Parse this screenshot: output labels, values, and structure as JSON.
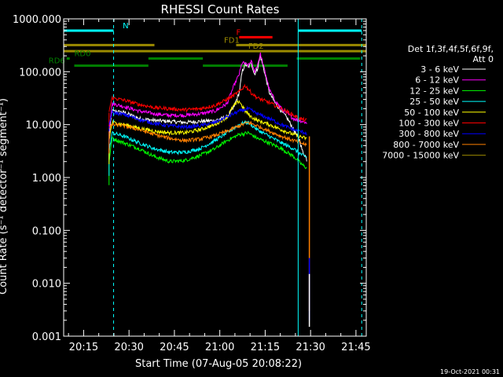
{
  "chart_data": {
    "type": "line",
    "title": "RHESSI Count Rates",
    "xlabel": "Start Time (07-Aug-05 20:08:22)",
    "ylabel": "Count Rate (s⁻¹ detector⁻¹ segment⁻¹)",
    "y_scale": "log",
    "ylim": [
      0.001,
      1000
    ],
    "xlim_minutes": [
      0,
      100
    ],
    "x_ticks": [
      {
        "label": "20:15",
        "min": 6.6
      },
      {
        "label": "20:30",
        "min": 21.6
      },
      {
        "label": "20:45",
        "min": 36.6
      },
      {
        "label": "21:00",
        "min": 51.6
      },
      {
        "label": "21:15",
        "min": 66.6
      },
      {
        "label": "21:30",
        "min": 81.6
      },
      {
        "label": "21:45",
        "min": 96.6
      }
    ],
    "y_ticks": [
      {
        "label": "0.001",
        "value": 0.001
      },
      {
        "label": "0.010",
        "value": 0.01
      },
      {
        "label": "0.100",
        "value": 0.1
      },
      {
        "label": "1.000",
        "value": 1
      },
      {
        "label": "10.000",
        "value": 10
      },
      {
        "label": "100.000",
        "value": 100
      },
      {
        "label": "1000.000",
        "value": 1000
      }
    ],
    "legend_header": [
      "Det 1f,3f,4f,5f,6f,9f,",
      "Att 0"
    ],
    "series": [
      {
        "name": "3 - 6 keV",
        "color": "#ffffff",
        "points": [
          [
            15,
            6
          ],
          [
            16,
            18
          ],
          [
            20,
            17
          ],
          [
            25,
            13
          ],
          [
            30,
            12
          ],
          [
            35,
            11.5
          ],
          [
            40,
            11
          ],
          [
            45,
            11.5
          ],
          [
            50,
            12
          ],
          [
            54,
            14
          ],
          [
            56,
            20
          ],
          [
            58,
            40
          ],
          [
            59,
            100
          ],
          [
            60,
            140
          ],
          [
            61,
            120
          ],
          [
            62,
            150
          ],
          [
            63,
            90
          ],
          [
            64,
            110
          ],
          [
            65,
            200
          ],
          [
            66,
            120
          ],
          [
            67,
            70
          ],
          [
            68,
            40
          ],
          [
            70,
            25
          ],
          [
            72,
            18
          ],
          [
            74,
            13
          ],
          [
            76,
            8
          ],
          [
            78,
            5
          ],
          [
            79,
            3
          ],
          [
            80,
            2.5
          ],
          [
            80.5,
            2
          ]
        ]
      },
      {
        "name": "6 - 12 keV",
        "color": "#ff00ff",
        "points": [
          [
            15,
            8
          ],
          [
            16,
            25
          ],
          [
            20,
            22
          ],
          [
            25,
            18
          ],
          [
            30,
            16
          ],
          [
            35,
            15
          ],
          [
            40,
            15
          ],
          [
            45,
            16
          ],
          [
            50,
            18
          ],
          [
            54,
            25
          ],
          [
            56,
            50
          ],
          [
            58,
            90
          ],
          [
            59,
            150
          ],
          [
            60,
            140
          ],
          [
            61,
            130
          ],
          [
            62,
            160
          ],
          [
            63,
            100
          ],
          [
            64,
            130
          ],
          [
            65,
            220
          ],
          [
            66,
            130
          ],
          [
            67,
            80
          ],
          [
            68,
            45
          ],
          [
            70,
            28
          ],
          [
            72,
            20
          ],
          [
            74,
            16
          ],
          [
            76,
            13
          ],
          [
            78,
            12
          ],
          [
            80,
            11
          ],
          [
            80.5,
            10
          ]
        ]
      },
      {
        "name": "12 - 25 keV",
        "color": "#00ff00",
        "points": [
          [
            15,
            2
          ],
          [
            16,
            5.5
          ],
          [
            20,
            4.5
          ],
          [
            25,
            3.5
          ],
          [
            30,
            2.5
          ],
          [
            35,
            2
          ],
          [
            40,
            2.1
          ],
          [
            45,
            2.6
          ],
          [
            50,
            3.5
          ],
          [
            54,
            5
          ],
          [
            58,
            6.5
          ],
          [
            61,
            7
          ],
          [
            64,
            5.5
          ],
          [
            68,
            4.5
          ],
          [
            72,
            3.5
          ],
          [
            76,
            2.5
          ],
          [
            79,
            1.7
          ],
          [
            80.5,
            1.5
          ]
        ]
      },
      {
        "name": "25 - 50 keV",
        "color": "#00ffff",
        "points": [
          [
            15,
            3
          ],
          [
            16,
            7
          ],
          [
            20,
            6
          ],
          [
            25,
            4.5
          ],
          [
            30,
            3.5
          ],
          [
            35,
            3
          ],
          [
            40,
            3
          ],
          [
            45,
            3.5
          ],
          [
            50,
            5
          ],
          [
            54,
            7
          ],
          [
            58,
            10
          ],
          [
            60,
            11
          ],
          [
            61,
            11
          ],
          [
            64,
            8
          ],
          [
            68,
            6
          ],
          [
            72,
            4.5
          ],
          [
            76,
            3.5
          ],
          [
            79,
            2.6
          ],
          [
            80.5,
            2.4
          ]
        ]
      },
      {
        "name": "50 - 100 keV",
        "color": "#ffff00",
        "points": [
          [
            15,
            5
          ],
          [
            16,
            11
          ],
          [
            20,
            10
          ],
          [
            25,
            8.5
          ],
          [
            30,
            7.5
          ],
          [
            35,
            7
          ],
          [
            40,
            7
          ],
          [
            45,
            8
          ],
          [
            50,
            10
          ],
          [
            54,
            14
          ],
          [
            56,
            22
          ],
          [
            58,
            28
          ],
          [
            60,
            18
          ],
          [
            62,
            14
          ],
          [
            64,
            12
          ],
          [
            68,
            10
          ],
          [
            72,
            8
          ],
          [
            76,
            6.5
          ],
          [
            80,
            5.5
          ],
          [
            80.5,
            5.3
          ]
        ]
      },
      {
        "name": "100 - 300 keV",
        "color": "#ff0000",
        "points": [
          [
            15,
            18
          ],
          [
            16,
            32
          ],
          [
            20,
            29
          ],
          [
            25,
            24
          ],
          [
            30,
            21
          ],
          [
            35,
            20
          ],
          [
            40,
            19
          ],
          [
            45,
            20
          ],
          [
            50,
            23
          ],
          [
            54,
            30
          ],
          [
            56,
            35
          ],
          [
            58,
            42
          ],
          [
            60,
            55
          ],
          [
            62,
            40
          ],
          [
            64,
            32
          ],
          [
            68,
            26
          ],
          [
            72,
            20
          ],
          [
            76,
            15
          ],
          [
            78,
            13
          ],
          [
            80,
            12
          ],
          [
            80.5,
            12
          ]
        ]
      },
      {
        "name": "300 - 800 keV",
        "color": "#0000ff",
        "points": [
          [
            15,
            10
          ],
          [
            16,
            17
          ],
          [
            20,
            15.5
          ],
          [
            25,
            12.5
          ],
          [
            30,
            10.5
          ],
          [
            35,
            9.5
          ],
          [
            40,
            9
          ],
          [
            45,
            9.5
          ],
          [
            50,
            11
          ],
          [
            54,
            14
          ],
          [
            58,
            18
          ],
          [
            61,
            20
          ],
          [
            64,
            16
          ],
          [
            68,
            13
          ],
          [
            72,
            10
          ],
          [
            76,
            8
          ],
          [
            80,
            7
          ],
          [
            80.5,
            6.6
          ]
        ]
      },
      {
        "name": "800 - 7000 keV",
        "color": "#ff8000",
        "points": [
          [
            15,
            8
          ],
          [
            16,
            10
          ],
          [
            20,
            9.5
          ],
          [
            25,
            8
          ],
          [
            30,
            6.5
          ],
          [
            35,
            5.5
          ],
          [
            40,
            5
          ],
          [
            45,
            5.3
          ],
          [
            50,
            6.2
          ],
          [
            54,
            7.5
          ],
          [
            58,
            9.5
          ],
          [
            61,
            11
          ],
          [
            64,
            9.5
          ],
          [
            68,
            7.5
          ],
          [
            72,
            6
          ],
          [
            76,
            5
          ],
          [
            80,
            4.2
          ],
          [
            80.5,
            4
          ]
        ]
      },
      {
        "name": "7000 - 15000 keV",
        "color": "#9b8a00",
        "points": []
      }
    ],
    "vertical_lines": [
      {
        "min": 0,
        "color": "#00ffff",
        "style": "solid"
      },
      {
        "min": 16.5,
        "color": "#00ffff",
        "style": "dashed"
      },
      {
        "min": 77.5,
        "color": "#00ffff",
        "style": "solid"
      },
      {
        "min": 98.5,
        "color": "#00ffff",
        "style": "dashed"
      }
    ],
    "flag_bars": [
      {
        "label": "N",
        "color": "#00ffff",
        "y": 600,
        "segments": [
          [
            0,
            16.5
          ],
          [
            77.5,
            98.5
          ]
        ],
        "label_min": 19.5
      },
      {
        "label": "F",
        "color": "#ff0000",
        "y": 450,
        "segments": [
          [
            58,
            69
          ]
        ],
        "label_min": 57
      },
      {
        "label": "FD1",
        "color": "#9b8a00",
        "y": 320,
        "segments": [
          [
            0,
            30
          ],
          [
            57,
            100
          ]
        ],
        "label_min": 53
      },
      {
        "label": "FD2",
        "color": "#9b8a00",
        "y": 245,
        "segments": [
          [
            0,
            100
          ]
        ],
        "label_min": 61
      },
      {
        "label": "RD0",
        "color": "#008000",
        "y": 178,
        "segments": [
          [
            1,
            2
          ],
          [
            28,
            46
          ],
          [
            77,
            98
          ]
        ],
        "label_min": 3.5
      },
      {
        "label": "RD6",
        "color": "#008000",
        "y": 130,
        "segments": [
          [
            3.5,
            28
          ],
          [
            46,
            74
          ]
        ],
        "label_min": -5
      }
    ]
  },
  "footer": {
    "timestamp": "19-Oct-2021 00:31"
  }
}
